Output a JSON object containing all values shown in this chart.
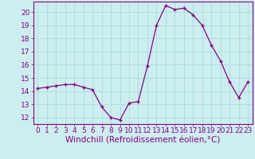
{
  "x": [
    0,
    1,
    2,
    3,
    4,
    5,
    6,
    7,
    8,
    9,
    10,
    11,
    12,
    13,
    14,
    15,
    16,
    17,
    18,
    19,
    20,
    21,
    22,
    23
  ],
  "y": [
    14.2,
    14.3,
    14.4,
    14.5,
    14.5,
    14.3,
    14.1,
    12.8,
    12.0,
    11.8,
    13.1,
    13.2,
    15.9,
    19.0,
    20.5,
    20.2,
    20.3,
    19.8,
    19.0,
    17.5,
    16.3,
    14.7,
    13.5,
    14.7
  ],
  "line_color": "#880088",
  "marker": "+",
  "bg_color": "#cceeee",
  "grid_color": "#aadddd",
  "xlabel": "Windchill (Refroidissement éolien,°C)",
  "ylim": [
    11.5,
    20.8
  ],
  "xlim": [
    -0.5,
    23.5
  ],
  "yticks": [
    12,
    13,
    14,
    15,
    16,
    17,
    18,
    19,
    20
  ],
  "xticks": [
    0,
    1,
    2,
    3,
    4,
    5,
    6,
    7,
    8,
    9,
    10,
    11,
    12,
    13,
    14,
    15,
    16,
    17,
    18,
    19,
    20,
    21,
    22,
    23
  ],
  "tick_color": "#880088",
  "label_color": "#880088",
  "tick_fontsize": 6.5,
  "xlabel_fontsize": 7.5,
  "spine_color": "#880088"
}
